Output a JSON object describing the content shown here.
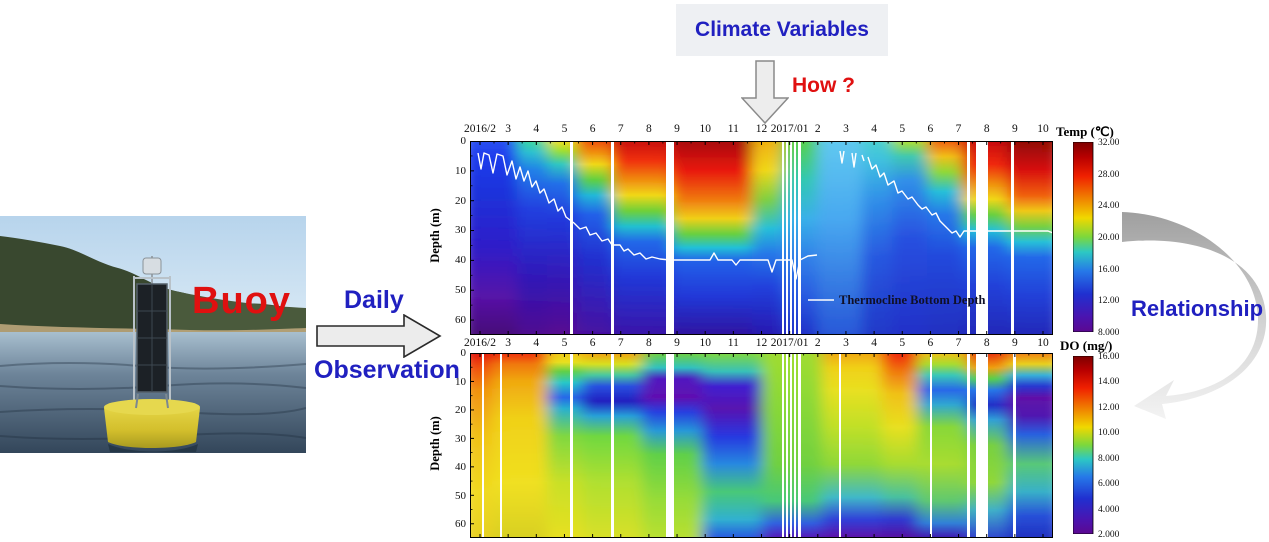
{
  "climate_box": {
    "label": "Climate Variables"
  },
  "how": {
    "label": "How ?"
  },
  "buoy": {
    "label": "Buoy"
  },
  "flow": {
    "daily": "Daily",
    "observation": "Observation",
    "relationship": "Relationship"
  },
  "colors": {
    "accent_blue_text": "#2020c0",
    "accent_red_text": "#e01010",
    "arrow_fill": "#ececec",
    "arrow_stroke": "#666666",
    "climate_box_bg": "#eef0f3",
    "buoy_yellow": "#ddc832"
  },
  "axes": {
    "months": [
      "2016/2",
      "3",
      "4",
      "5",
      "6",
      "7",
      "8",
      "9",
      "10",
      "11",
      "12",
      "2017/01",
      "2",
      "3",
      "4",
      "5",
      "6",
      "7",
      "8",
      "9",
      "10"
    ],
    "depth_ticks": [
      "0",
      "10",
      "20",
      "30",
      "40",
      "50",
      "60"
    ],
    "depth_label": "Depth (m)"
  },
  "temp_plot": {
    "colorbar_title": "Temp (℃)",
    "colorbar_ticks": [
      "32.00",
      "28.00",
      "24.00",
      "20.00",
      "16.00",
      "12.00",
      "8.000"
    ],
    "legend_label": "Thermocline Bottom Depth"
  },
  "do_plot": {
    "colorbar_title": "DO (mg/)",
    "colorbar_ticks": [
      "16.00",
      "14.00",
      "12.00",
      "10.00",
      "8.000",
      "6.000",
      "4.000",
      "2.000"
    ]
  },
  "chart_data": [
    {
      "type": "heatmap",
      "variable": "water-temperature-depth-time",
      "x": [
        "2016/2",
        "3",
        "4",
        "5",
        "6",
        "7",
        "8",
        "9",
        "10",
        "11",
        "12",
        "2017/01",
        "2",
        "3",
        "4",
        "5",
        "6",
        "7",
        "8",
        "9",
        "10"
      ],
      "ylabel": "Depth (m)",
      "ylim": [
        0,
        65
      ],
      "y_ticks": [
        0,
        10,
        20,
        30,
        40,
        50,
        60
      ],
      "colorbar": {
        "title": "Temp (℃)",
        "min": 8.0,
        "max": 32.0,
        "ticks": [
          32.0,
          28.0,
          24.0,
          20.0,
          16.0,
          12.0,
          8.0
        ],
        "colormap": "jet"
      },
      "legend": [
        "Thermocline Bottom Depth"
      ],
      "annotations": "White line = thermocline bottom depth: near surface Feb–Apr 2016, deepens to ~40 m by Jul, holds ~40 m through Jan 2017; reforms near surface Mar 2017 and deepens to ~30 m by Oct 2017. White vertical stripes = missing data (mid-May, Jul, late Aug 2016, Jan 2017, late Jul–Aug, Sep 2017).",
      "pattern": "Surface warms from ~10°C (Feb) to 30–32°C (Jul–Oct), cools to ~12°C in winter; deep water stays 8–12°C year-round (blue/purple)."
    },
    {
      "type": "heatmap",
      "variable": "dissolved-oxygen-depth-time",
      "x": [
        "2016/2",
        "3",
        "4",
        "5",
        "6",
        "7",
        "8",
        "9",
        "10",
        "11",
        "12",
        "2017/01",
        "2",
        "3",
        "4",
        "5",
        "6",
        "7",
        "8",
        "9",
        "10"
      ],
      "ylabel": "Depth (m)",
      "ylim": [
        0,
        65
      ],
      "y_ticks": [
        0,
        10,
        20,
        30,
        40,
        50,
        60
      ],
      "colorbar": {
        "title": "DO (mg/)",
        "min": 2.0,
        "max": 16.0,
        "ticks": [
          16.0,
          14.0,
          12.0,
          10.0,
          8.0,
          6.0,
          4.0,
          2.0
        ],
        "colormap": "jet"
      },
      "pattern": "High DO 12–14 mg/L (red/orange) whole column Feb–May 2016; subsurface low-DO layer 2–4 mg/L (blue/purple) at 10–30 m Jun–Nov 2016 deepening with time; mixed ~8 mg/L (green) column Dec–Feb 2017; surface maximum again Apr–May 2017; low-DO subsurface layer and low-DO bottom water (purple) late 2017."
    }
  ]
}
